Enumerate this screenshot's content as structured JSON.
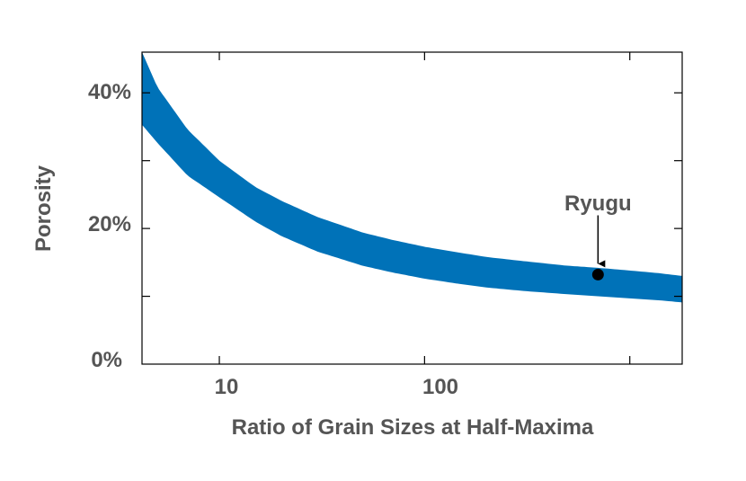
{
  "chart_data": {
    "type": "area",
    "title": "",
    "xlabel": "Ratio of Grain Sizes at Half-Maxima",
    "ylabel": "Porosity",
    "x_scale": "log",
    "xlim": [
      4.2,
      1800
    ],
    "ylim": [
      0,
      46
    ],
    "x_ticks": [
      {
        "value": 10,
        "label": "10"
      },
      {
        "value": 100,
        "label": "100"
      }
    ],
    "y_ticks": [
      {
        "value": 0,
        "label": "0%"
      },
      {
        "value": 20,
        "label": "20%"
      },
      {
        "value": 40,
        "label": "40%"
      }
    ],
    "minor_x_ticks": [
      1000
    ],
    "minor_y_ticks": [
      10,
      30
    ],
    "grid": false,
    "series": [
      {
        "name": "porosity-band",
        "kind": "band",
        "color": "#0072b8",
        "x": [
          4.2,
          5,
          7,
          10,
          15,
          20,
          30,
          50,
          70,
          100,
          150,
          200,
          300,
          500,
          700,
          1000,
          1400,
          1800
        ],
        "upper": [
          46,
          40.8,
          34.6,
          30.0,
          26.1,
          24.1,
          21.7,
          19.4,
          18.3,
          17.3,
          16.4,
          15.8,
          15.2,
          14.5,
          14.2,
          13.8,
          13.4,
          13.0
        ],
        "lower": [
          35.3,
          32.6,
          27.8,
          24.6,
          21.0,
          18.9,
          16.6,
          14.5,
          13.5,
          12.6,
          11.8,
          11.3,
          10.8,
          10.3,
          10.0,
          9.7,
          9.4,
          9.1
        ]
      }
    ],
    "points": [
      {
        "name": "Ryugu",
        "x": 700,
        "y": 13.2,
        "color": "#000000"
      }
    ],
    "annotations": [
      {
        "text": "Ryugu",
        "x": 700,
        "y": 23.0,
        "arrow_to": {
          "x": 700,
          "y": 14.8
        }
      }
    ]
  }
}
